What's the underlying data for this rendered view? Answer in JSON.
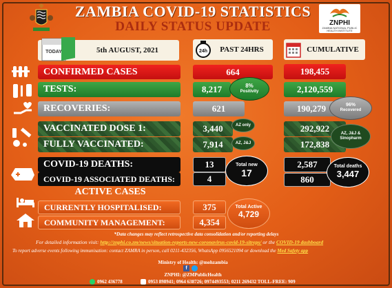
{
  "header": {
    "title": "ZAMBIA COVID-19 STATISTICS",
    "subtitle": "DAILY STATUS UPDATE",
    "logo_name": "ZNPHI",
    "logo_tagline": "ZAMBIA NATIONAL PUBLIC HEALTH INSTITUTE"
  },
  "columns": {
    "date": "5th AUGUST, 2021",
    "calendar_label": "TODAY",
    "clock_label": "24h",
    "past24": "PAST 24HRS",
    "cumulative": "CUMULATIVE"
  },
  "stats": {
    "confirmed": {
      "label": "CONFIRMED CASES",
      "past24": "664",
      "cumulative": "198,455"
    },
    "tests": {
      "label": "TESTS:",
      "past24": "8,217",
      "cumulative": "2,120,559",
      "positivity_pct": "8%",
      "positivity_label": "Positivity"
    },
    "recoveries": {
      "label": "RECOVERIES:",
      "past24": "621",
      "cumulative": "190,279",
      "recovered_pct": "96%",
      "recovered_label": "Recovered"
    },
    "dose1": {
      "label": "VACCINATED DOSE 1:",
      "past24": "3,440",
      "cumulative": "292,922",
      "note": "AZ only"
    },
    "full": {
      "label": "FULLY VACCINATED:",
      "past24": "7,914",
      "cumulative": "172,838",
      "note": "AZ, J&J"
    },
    "vaccine_cum_note": "AZ, J&J & Sinopharm",
    "deaths": {
      "label": "COVID-19 DEATHS:",
      "past24": "13",
      "cumulative": "2,587"
    },
    "assoc_deaths": {
      "label": "COVID-19 ASSOCIATED DEATHS:",
      "past24": "4",
      "cumulative": "860"
    },
    "total_new_label": "Total new",
    "total_new": "17",
    "total_deaths_label": "Total deaths",
    "total_deaths": "3,447"
  },
  "active": {
    "heading": "ACTIVE CASES",
    "hospitalised_label": "CURRENTLY HOSPITALISED:",
    "hospitalised": "375",
    "community_label": "COMMUNITY MANAGEMENT:",
    "community": "4,354",
    "total_active_label": "Total Active",
    "total_active": "4,729"
  },
  "footer": {
    "note": "*Data changes may reflect retrospective data consolidation and/or reporting delays",
    "info_prefix": "For detailed information visit: ",
    "info_link": "http://znphi.co.zm/news/situation-reports-new-coronavirus-covid-19-sitreps/",
    "info_or": " or the ",
    "dashboard_link": "COVID-19 dashboard",
    "report_prefix": "To report adverse events following immunisation: contact ZAMRA in person, call 0211-432356, WhatsApp 0956521094 or download the ",
    "med_link": "Med Safety app",
    "moh": "Ministry of Health: @mohzambia",
    "znphi_handle": "ZNPHI: @ZMPublicHealth",
    "phones": "0962 436778",
    "phones2": "0953 898941; 0964 638726; 0974493553; 0211 269432 TOLL-FREE: 909"
  },
  "colors": {
    "background": "#e4651b",
    "confirmed": "#e01818",
    "tests": "#2f9a3c",
    "recoveries": "#9a9a9a",
    "vaccinated": "#33622f",
    "deaths": "#0d0d0d"
  }
}
